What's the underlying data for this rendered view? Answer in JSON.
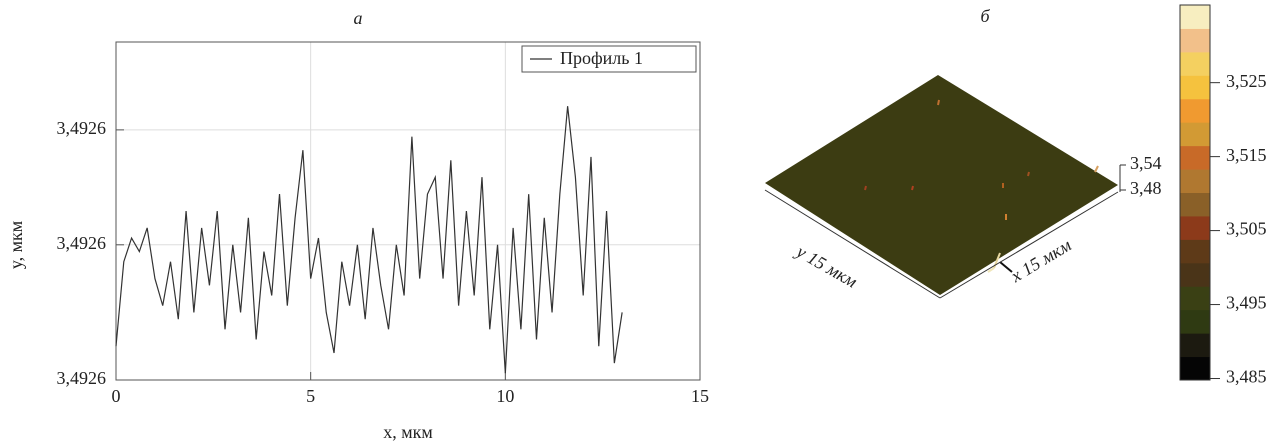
{
  "chart_data": [
    {
      "type": "line",
      "title": "а",
      "x_label": "x, мкм",
      "y_label": "y, мкм",
      "xlim": [
        0,
        15
      ],
      "xticks": [
        0,
        5,
        10,
        15
      ],
      "ylim": [
        3.49255,
        3.49265
      ],
      "yticks": [
        {
          "value": 3.49255,
          "label": "3,4926"
        },
        {
          "value": 3.49259,
          "label": "3,4926"
        },
        {
          "value": 3.492624,
          "label": "3,4926"
        }
      ],
      "grid": true,
      "legend": "upper right",
      "series": [
        {
          "name": "Профиль 1",
          "color": "#333333",
          "x": [
            0,
            0.2,
            0.4,
            0.6,
            0.8,
            1.0,
            1.2,
            1.4,
            1.6,
            1.8,
            2.0,
            2.2,
            2.4,
            2.6,
            2.8,
            3.0,
            3.2,
            3.4,
            3.6,
            3.8,
            4.0,
            4.2,
            4.4,
            4.6,
            4.8,
            5.0,
            5.2,
            5.4,
            5.6,
            5.8,
            6.0,
            6.2,
            6.4,
            6.6,
            6.8,
            7.0,
            7.2,
            7.4,
            7.6,
            7.8,
            8.0,
            8.2,
            8.4,
            8.6,
            8.8,
            9.0,
            9.2,
            9.4,
            9.6,
            9.8,
            10.0,
            10.2,
            10.4,
            10.6,
            10.8,
            11.0,
            11.2,
            11.4,
            11.6,
            11.8,
            12.0,
            12.2,
            12.4,
            12.6,
            12.8,
            13.0
          ],
          "values": [
            3.49256,
            3.492585,
            3.492592,
            3.492588,
            3.492595,
            3.49258,
            3.492572,
            3.492585,
            3.492568,
            3.4926,
            3.49257,
            3.492595,
            3.492578,
            3.4926,
            3.492565,
            3.49259,
            3.49257,
            3.492598,
            3.492562,
            3.492588,
            3.492575,
            3.492605,
            3.492572,
            3.492598,
            3.492618,
            3.49258,
            3.492592,
            3.49257,
            3.492558,
            3.492585,
            3.492572,
            3.49259,
            3.492568,
            3.492595,
            3.492578,
            3.492565,
            3.49259,
            3.492575,
            3.492622,
            3.49258,
            3.492605,
            3.49261,
            3.49258,
            3.492615,
            3.492572,
            3.4926,
            3.492575,
            3.49261,
            3.492565,
            3.49259,
            3.492552,
            3.492595,
            3.492565,
            3.492605,
            3.492562,
            3.492598,
            3.49257,
            3.492605,
            3.492631,
            3.49261,
            3.492575,
            3.492616,
            3.49256,
            3.4926,
            3.492555,
            3.49257
          ]
        }
      ]
    },
    {
      "type": "surface",
      "title": "б",
      "x_label": "x 15 мкм",
      "y_label": "y 15 мкм",
      "color": "#3c3c12",
      "zlim": [
        3.48,
        3.54
      ],
      "zticks": [
        {
          "value": 3.54,
          "label": "3,54"
        },
        {
          "value": 3.48,
          "label": "3,48"
        }
      ],
      "clim": [
        3.4848,
        3.5355
      ],
      "cticks": [
        {
          "value": 3.485,
          "label": "3,485"
        },
        {
          "value": 3.495,
          "label": "3,495"
        },
        {
          "value": 3.505,
          "label": "3,505"
        },
        {
          "value": 3.515,
          "label": "3,515"
        },
        {
          "value": 3.525,
          "label": "3,525"
        }
      ],
      "colors": [
        "#050505",
        "#1c1a10",
        "#2f3a12",
        "#3a4014",
        "#4a3418",
        "#5e3a18",
        "#8c3a1a",
        "#8a6028",
        "#b07830",
        "#c86a28",
        "#d29a34",
        "#f09a30",
        "#f5c23e",
        "#f4d060",
        "#f2c08a",
        "#f7eec0"
      ]
    }
  ]
}
